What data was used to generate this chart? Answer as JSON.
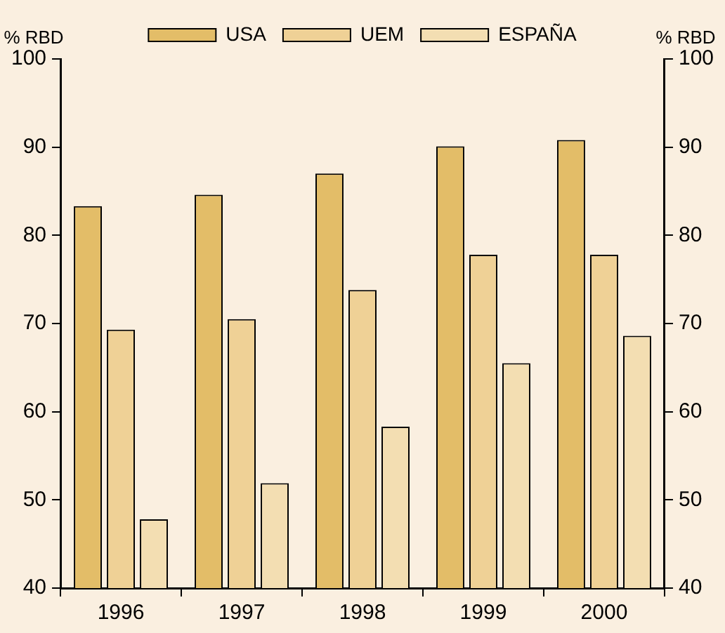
{
  "chart_data": {
    "type": "bar",
    "ylabel": "% RBD",
    "y2label": "% RBD",
    "categories": [
      "1996",
      "1997",
      "1998",
      "1999",
      "2000"
    ],
    "series": [
      {
        "name": "USA",
        "color": "#e3bd68",
        "values": [
          83.3,
          84.6,
          87.0,
          90.1,
          90.8
        ]
      },
      {
        "name": "UEM",
        "color": "#efd196",
        "values": [
          69.3,
          70.5,
          73.8,
          77.8,
          77.8
        ]
      },
      {
        "name": "ESPAÑA",
        "color": "#f3deb2",
        "values": [
          47.8,
          51.9,
          58.3,
          65.5,
          68.6
        ]
      }
    ],
    "ylim": [
      40,
      100
    ],
    "yticks": [
      40,
      50,
      60,
      70,
      80,
      90,
      100
    ],
    "y2lim": [
      40,
      100
    ],
    "y2ticks": [
      40,
      50,
      60,
      70,
      80,
      90,
      100
    ],
    "grid": false,
    "legend": "top"
  }
}
